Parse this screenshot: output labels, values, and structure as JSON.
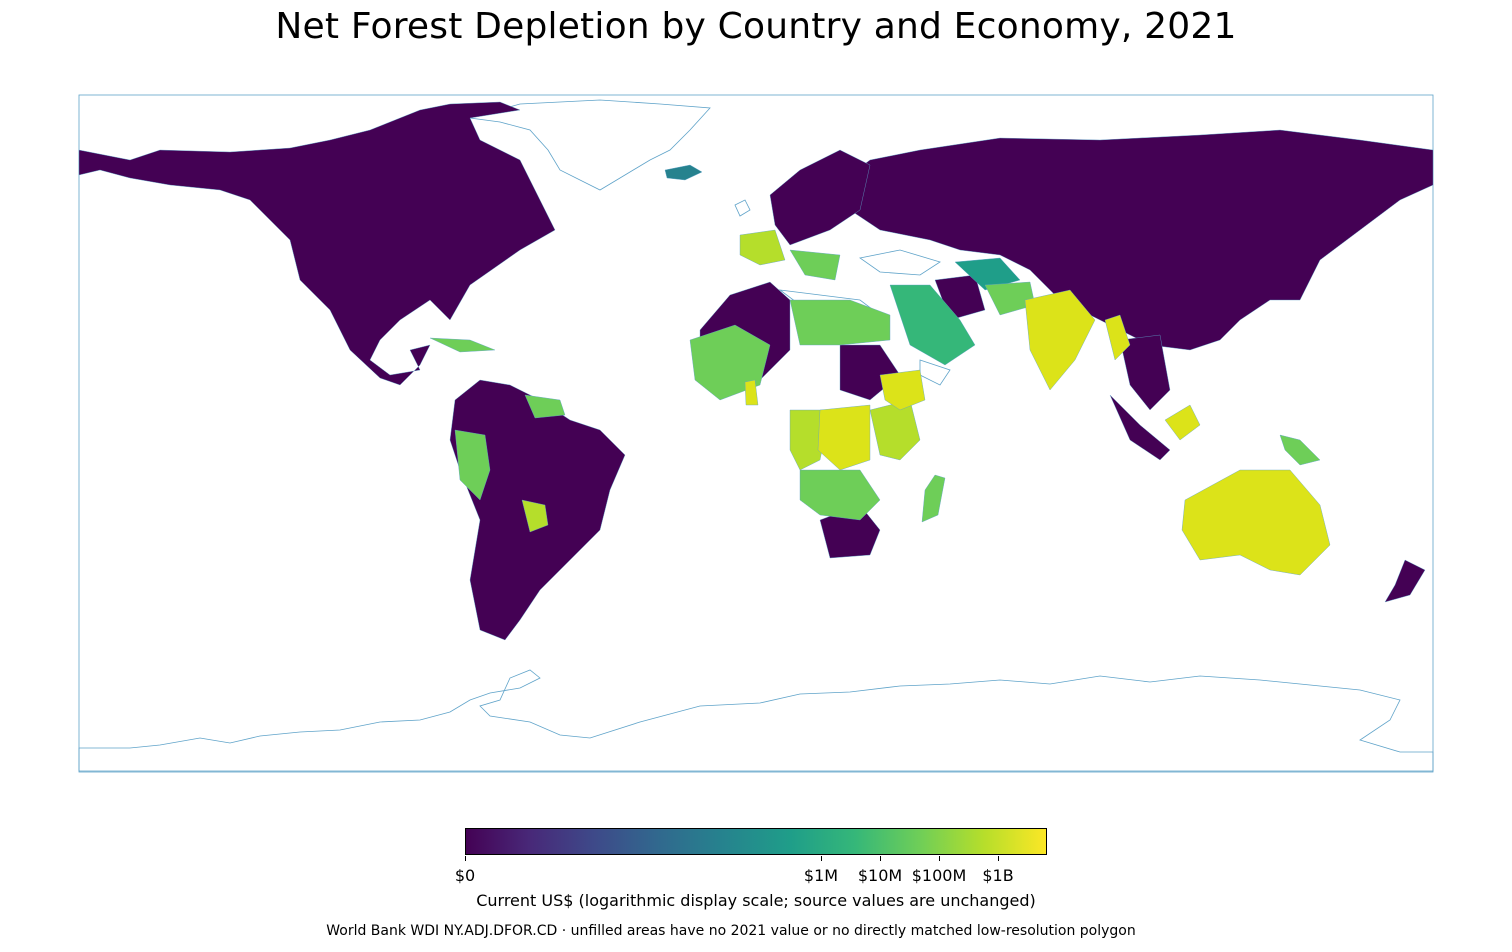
{
  "title": "Net Forest Depletion by Country and Economy, 2021",
  "colorbar": {
    "ticks": [
      {
        "label": "$0",
        "value": 0
      },
      {
        "label": "$1M",
        "value": 1000000
      },
      {
        "label": "$10M",
        "value": 10000000
      },
      {
        "label": "$100M",
        "value": 100000000
      },
      {
        "label": "$1B",
        "value": 1000000000
      }
    ],
    "label": "Current US$ (logarithmic display scale; source values are unchanged)",
    "colormap": [
      "#440154",
      "#482878",
      "#3e4989",
      "#31688e",
      "#26828e",
      "#1f9e89",
      "#35b779",
      "#6ece58",
      "#b5de2b",
      "#fde725"
    ]
  },
  "source_note": "World Bank WDI NY.ADJ.DFOR.CD · unfilled areas have no 2021 value or no directly matched low-resolution polygon",
  "colors": {
    "no_data_outline": "#5fa3c9",
    "zero": "#440154"
  }
}
